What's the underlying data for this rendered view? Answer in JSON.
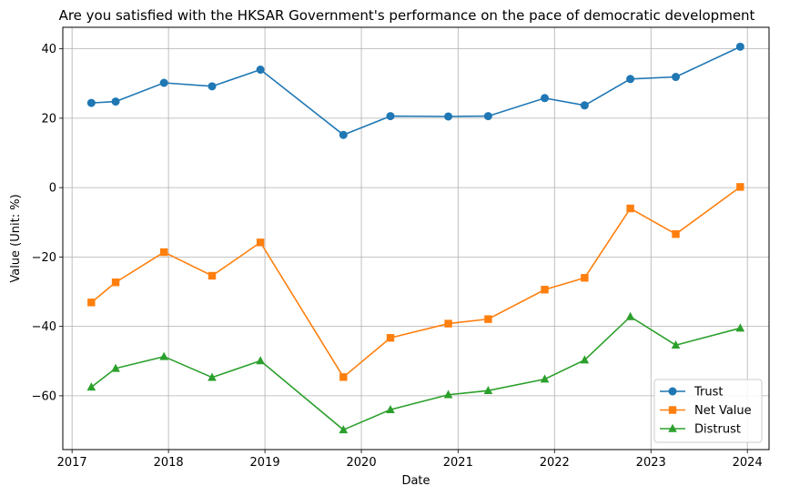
{
  "chart_data": {
    "type": "line",
    "title": "Are you satisfied with the HKSAR Government's performance on the pace of democratic development",
    "xlabel": "Date",
    "ylabel": "Value (Unit: %)",
    "xlim": [
      "2016-11-27",
      "2024-03-23"
    ],
    "ylim": [
      -75.5,
      46.2
    ],
    "x_ticks": [
      "2017",
      "2018",
      "2019",
      "2020",
      "2021",
      "2022",
      "2023",
      "2024"
    ],
    "y_ticks": [
      40,
      20,
      0,
      -20,
      -40,
      -60
    ],
    "y_tick_labels": [
      "40",
      "20",
      "0",
      "−20",
      "−40",
      "−60"
    ],
    "grid": true,
    "legend_position": "lower-right",
    "x": [
      "2017-03-15",
      "2017-06-15",
      "2017-12-15",
      "2018-06-15",
      "2018-12-15",
      "2019-10-25",
      "2020-04-20",
      "2020-11-25",
      "2021-04-25",
      "2021-11-25",
      "2022-04-25",
      "2022-10-15",
      "2023-04-05",
      "2023-12-05"
    ],
    "series": [
      {
        "name": "Trust",
        "color": "#1f77b4",
        "marker": "circle",
        "values": [
          24.4,
          24.8,
          30.2,
          29.2,
          34.0,
          15.2,
          20.6,
          20.5,
          20.6,
          25.8,
          23.7,
          31.3,
          31.9,
          40.6
        ]
      },
      {
        "name": "Net Value",
        "color": "#ff7f0e",
        "marker": "square",
        "values": [
          -33.1,
          -27.3,
          -18.6,
          -25.4,
          -15.8,
          -54.6,
          -43.3,
          -39.2,
          -37.9,
          -29.4,
          -26.0,
          -6.0,
          -13.4,
          0.2
        ]
      },
      {
        "name": "Distrust",
        "color": "#2ca02c",
        "marker": "triangle",
        "values": [
          -57.5,
          -52.1,
          -48.7,
          -54.7,
          -49.9,
          -69.8,
          -64.0,
          -59.7,
          -58.5,
          -55.2,
          -49.7,
          -37.2,
          -45.4,
          -40.5
        ]
      }
    ]
  }
}
